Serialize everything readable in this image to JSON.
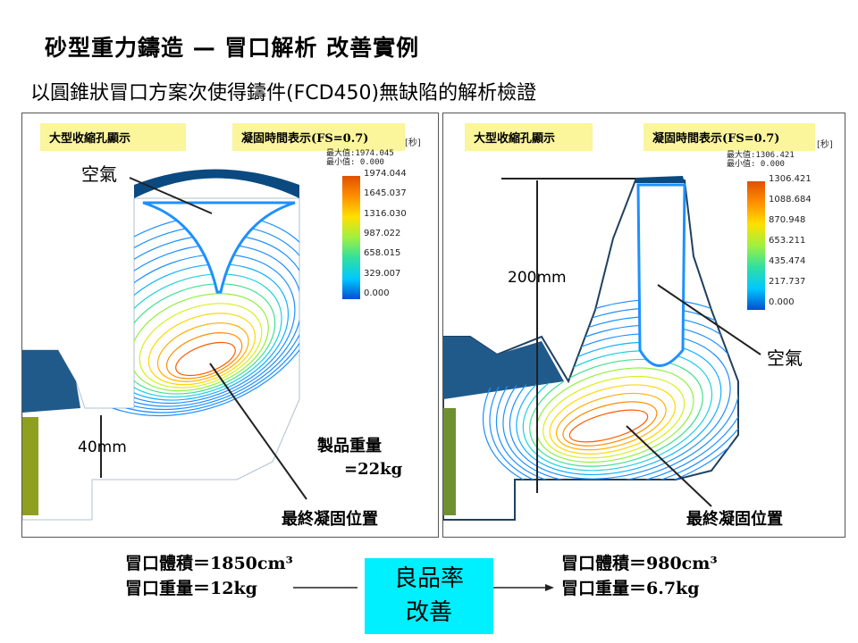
{
  "title": "砂型重力鑄造 — 冒口解析 改善實例",
  "subtitle": "以圓錐狀冒口方案次使得鑄件(FCD450)無缺陷的解析檢證",
  "left_panel": {
    "tag_shrinkage": "大型收縮孔顯示",
    "tag_time": "凝固時間表示(FS=0.7)",
    "unit": "[秒]",
    "max_label": "最大值:1974.045",
    "min_label": "最小值: 0.000",
    "scale_ticks": [
      "1974.044",
      "1645.037",
      "1316.030",
      "987.022",
      "658.015",
      "329.007",
      "0.000"
    ],
    "air_label": "空氣",
    "dim_label": "40mm",
    "weight_label_1": "製品重量",
    "weight_label_2": "=22kg",
    "final_label": "最終凝固位置"
  },
  "right_panel": {
    "tag_shrinkage": "大型收縮孔顯示",
    "tag_time": "凝固時間表示(FS=0.7)",
    "unit": "[秒]",
    "max_label": "最大值:1306.421",
    "min_label": "最小值: 0.000",
    "scale_ticks": [
      "1306.421",
      "1088.684",
      "870.948",
      "653.211",
      "435.474",
      "217.737",
      "0.000"
    ],
    "air_label": "空氣",
    "dim_label": "200mm",
    "final_label": "最終凝固位置"
  },
  "bottom": {
    "left_volume": "冒口體積＝1850cm³",
    "left_weight": "冒口重量＝12kg",
    "center_line1": "良品率",
    "center_line2": "改善",
    "right_volume": "冒口體積＝980cm³",
    "right_weight": "冒口重量＝6.7kg"
  },
  "colors": {
    "tag_bg": "#fbf59b",
    "highlight": "#00f0ff"
  }
}
